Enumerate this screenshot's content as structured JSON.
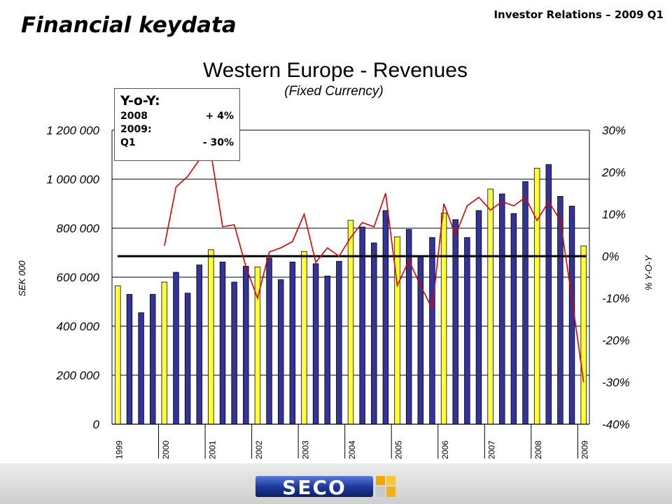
{
  "header": {
    "title": "Financial keydata",
    "right_label": "Investor Relations – 2009 Q1"
  },
  "yoy_box": {
    "title": "Y-o-Y:",
    "rows": [
      {
        "label": "2008",
        "value": "+ 4%"
      },
      {
        "label": "2009:",
        "value": ""
      },
      {
        "label": "Q1",
        "value": "- 30%"
      }
    ]
  },
  "logo": {
    "text": "SECO"
  },
  "colors": {
    "bar_q1": "#ffff33",
    "bar_other": "#333399",
    "line": "#dd0000",
    "zero_line": "#000000"
  },
  "chart_data": {
    "type": "bar",
    "title": "Western Europe - Revenues",
    "subtitle": "(Fixed Currency)",
    "ylabel": "SEK 000",
    "y2label": "% Y-O-Y",
    "ylim": [
      0,
      1200000
    ],
    "y_ticks": [
      "0",
      "200 000",
      "400 000",
      "600 000",
      "800 000",
      "1 000 000",
      "1 200 000"
    ],
    "y2lim": [
      -40,
      30
    ],
    "y2_ticks": [
      "-40%",
      "-30%",
      "-20%",
      "-10%",
      "0%",
      "10%",
      "20%",
      "30%"
    ],
    "years": [
      "1999",
      "2000",
      "2001",
      "2002",
      "2003",
      "2004",
      "2005",
      "2006",
      "2007",
      "2008",
      "2009"
    ],
    "series": [
      {
        "name": "Revenues",
        "axis": "left",
        "values": [
          565000,
          530000,
          455000,
          530000,
          580000,
          620000,
          535000,
          650000,
          712000,
          662000,
          580000,
          645000,
          642000,
          678000,
          590000,
          662000,
          705000,
          655000,
          605000,
          665000,
          832000,
          805000,
          740000,
          872000,
          765000,
          795000,
          688000,
          762000,
          862000,
          835000,
          762000,
          872000,
          960000,
          940000,
          860000,
          990000,
          1045000,
          1060000,
          930000,
          890000,
          728000
        ]
      },
      {
        "name": "% Y-O-Y",
        "axis": "right",
        "type": "line",
        "start_index": 4,
        "values": [
          2.5,
          16.5,
          19,
          23,
          24.5,
          7,
          7.5,
          -2.5,
          -10,
          1,
          2,
          3.5,
          10,
          -1.5,
          2,
          0,
          4.5,
          8,
          7,
          15,
          -7,
          -1,
          -7,
          -12.5,
          12.5,
          5,
          12,
          14,
          11,
          13,
          12,
          14,
          8.5,
          13,
          8.5,
          -10,
          -30
        ]
      }
    ],
    "grid": true
  }
}
